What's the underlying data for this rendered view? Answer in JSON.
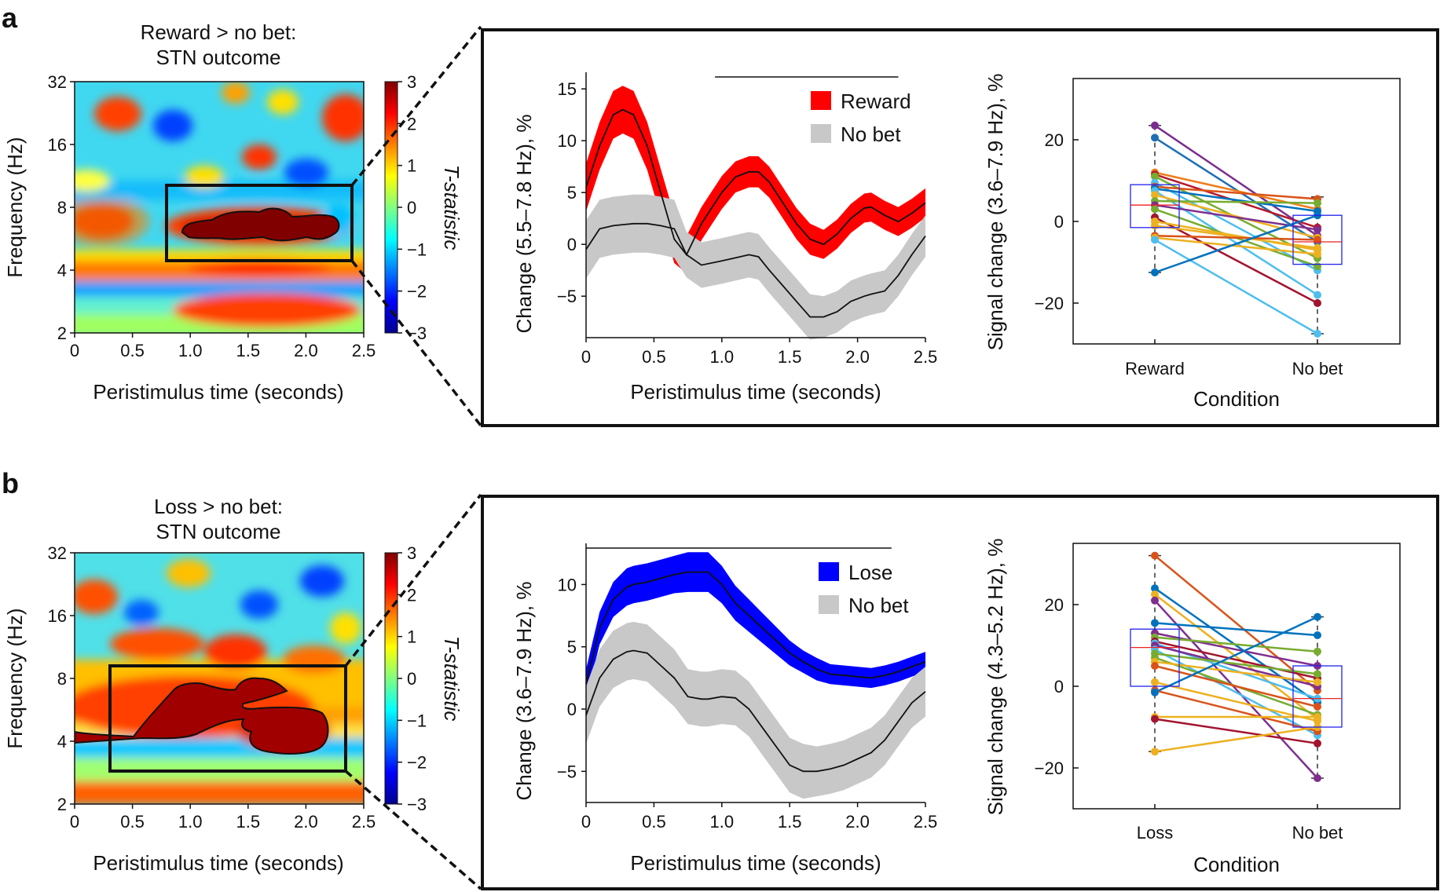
{
  "panels": [
    {
      "letter": "a",
      "heatmap": {
        "title_line1": "Reward > no bet:",
        "title_line2": "STN outcome",
        "ylabel": "Frequency (Hz)",
        "xlabel": "Peristimulus time (seconds)",
        "yticks": [
          "32",
          "16",
          "8",
          "4",
          "2"
        ],
        "xticks": [
          "0",
          "0.5",
          "1.0",
          "1.5",
          "2.0",
          "2.5"
        ],
        "colorbar_label": "T-statistic",
        "colorbar_ticks": [
          "3",
          "2",
          "1",
          "0",
          "−1",
          "−2",
          "−3"
        ],
        "roi_time": [
          0.8,
          2.4
        ],
        "roi_freq_hz": [
          4.6,
          10.7
        ]
      },
      "timecourse": {
        "ylabel": "Change (5.5–7.8 Hz), %",
        "xlabel": "Peristimulus time (seconds)",
        "xticks": [
          "0",
          "0.5",
          "1.0",
          "1.5",
          "2.0",
          "2.5"
        ],
        "yticks": [
          "15",
          "10",
          "5",
          "0",
          "−5"
        ],
        "legend": [
          "Reward",
          "No bet"
        ]
      },
      "paired": {
        "ylabel": "Signal change (3.6–7.9 Hz), %",
        "xlabel": "Condition",
        "categories": [
          "Reward",
          "No bet"
        ],
        "yticks": [
          "20",
          "0",
          "−20"
        ]
      }
    },
    {
      "letter": "b",
      "heatmap": {
        "title_line1": "Loss > no bet:",
        "title_line2": "STN outcome",
        "ylabel": "Frequency (Hz)",
        "xlabel": "Peristimulus time (seconds)",
        "yticks": [
          "32",
          "16",
          "8",
          "4",
          "2"
        ],
        "xticks": [
          "0",
          "0.5",
          "1.0",
          "1.5",
          "2.0",
          "2.5"
        ],
        "colorbar_label": "T-statistic",
        "colorbar_ticks": [
          "3",
          "2",
          "1",
          "0",
          "−1",
          "−2",
          "−3"
        ],
        "roi_time": [
          0.3,
          2.35
        ],
        "roi_freq_hz": [
          2.9,
          9.6
        ]
      },
      "timecourse": {
        "ylabel": "Change (3.6–7.9 Hz), %",
        "xlabel": "Peristimulus time (seconds)",
        "xticks": [
          "0",
          "0.5",
          "1.0",
          "1.5",
          "2.0",
          "2.5"
        ],
        "yticks": [
          "10",
          "5",
          "0",
          "−5"
        ],
        "legend": [
          "Lose",
          "No bet"
        ]
      },
      "paired": {
        "ylabel": "Signal change (4.3–5.2 Hz), %",
        "xlabel": "Condition",
        "categories": [
          "Loss",
          "No bet"
        ],
        "yticks": [
          "20",
          "0",
          "−20"
        ]
      }
    }
  ],
  "chart_data": [
    {
      "type": "heatmap",
      "title": "Reward > no bet: STN outcome",
      "xlabel": "Peristimulus time (seconds)",
      "ylabel": "Frequency (Hz)",
      "xlim": [
        0,
        2.5
      ],
      "ylim_hz": [
        2,
        32
      ],
      "clim": [
        -3,
        3
      ],
      "colorbar_label": "T-statistic",
      "significant_cluster": "≈1.0–2.3 s, ≈5.5–7.8 Hz"
    },
    {
      "type": "line",
      "ylabel": "Change (5.5–7.8 Hz), %",
      "xlabel": "Peristimulus time (seconds)",
      "xlim": [
        0,
        2.5
      ],
      "ylim": [
        -9,
        16
      ],
      "significance_bar": [
        0.95,
        2.3
      ],
      "x": [
        0,
        0.1,
        0.2,
        0.27,
        0.35,
        0.45,
        0.55,
        0.65,
        0.74,
        0.85,
        1.0,
        1.1,
        1.2,
        1.27,
        1.35,
        1.45,
        1.55,
        1.65,
        1.75,
        1.85,
        1.95,
        2.05,
        2.1,
        2.2,
        2.3,
        2.4,
        2.5
      ],
      "series": [
        {
          "name": "Reward",
          "color": "#ff0000",
          "values": [
            5.5,
            9.5,
            12.5,
            13,
            12.5,
            9.5,
            5,
            0.5,
            -1,
            2,
            5,
            6.5,
            7,
            7,
            6,
            4,
            2,
            0.5,
            0,
            1,
            2.5,
            3.5,
            3.6,
            2.8,
            2.2,
            3,
            4
          ],
          "sem": [
            2.3,
            2.3,
            2.3,
            2.3,
            2.3,
            2.3,
            2.3,
            2.3,
            1.8,
            1.6,
            1.6,
            1.5,
            1.5,
            1.5,
            1.5,
            1.5,
            1.5,
            1.5,
            1.4,
            1.4,
            1.4,
            1.4,
            1.4,
            1.4,
            1.4,
            1.4,
            1.4
          ]
        },
        {
          "name": "No bet",
          "color": "#c8c8c8",
          "values": [
            -0.5,
            1.5,
            1.8,
            1.9,
            2,
            2,
            1.8,
            1.5,
            -1,
            -2,
            -1.6,
            -1.3,
            -1,
            -1.2,
            -2.5,
            -4,
            -5.5,
            -7,
            -7,
            -6.5,
            -5.5,
            -5,
            -4.8,
            -4.5,
            -3,
            -1,
            0.8
          ],
          "sem": [
            2.8,
            2.8,
            2.8,
            2.8,
            2.8,
            2.8,
            2.8,
            2.8,
            2.2,
            2.2,
            2.2,
            2.2,
            2.2,
            2.2,
            2.2,
            2.2,
            2.2,
            2.2,
            2.0,
            2.0,
            2.0,
            2.0,
            2.0,
            2.0,
            2.0,
            2.0,
            2.0
          ]
        }
      ]
    },
    {
      "type": "scatter",
      "ylabel": "Signal change (3.6–7.9 Hz), %",
      "xlabel": "Condition",
      "categories": [
        "Reward",
        "No bet"
      ],
      "ylim": [
        -30,
        35
      ],
      "box": [
        {
          "q1": -1.5,
          "median": 4,
          "q3": 9,
          "whisker_low": -12.5,
          "whisker_high": 23.5
        },
        {
          "q1": -10.5,
          "median": -5,
          "q3": 1.5,
          "whisker_low": -27.5,
          "whisker_high": 6
        }
      ],
      "pairs": [
        {
          "a": 23.5,
          "b": -3.5,
          "color": "#7b2d8e"
        },
        {
          "a": 20.5,
          "b": -5,
          "color": "#1f6fb4"
        },
        {
          "a": 12,
          "b": 3,
          "color": "#ef7d1a"
        },
        {
          "a": 11.5,
          "b": -1.5,
          "color": "#b5192b"
        },
        {
          "a": 11,
          "b": -9,
          "color": "#77ac30"
        },
        {
          "a": 9.5,
          "b": -12,
          "color": "#4dbeee"
        },
        {
          "a": 8.5,
          "b": 5.5,
          "color": "#d95319"
        },
        {
          "a": 8,
          "b": 2.5,
          "color": "#0072bd"
        },
        {
          "a": 7.5,
          "b": -18,
          "color": "#4dbeee"
        },
        {
          "a": 6.5,
          "b": -4,
          "color": "#edb120"
        },
        {
          "a": 5,
          "b": 4.5,
          "color": "#77ac30"
        },
        {
          "a": 4,
          "b": -2,
          "color": "#7e2f8e"
        },
        {
          "a": 3,
          "b": -11,
          "color": "#77ac30"
        },
        {
          "a": 1,
          "b": -20,
          "color": "#a2142f"
        },
        {
          "a": 0,
          "b": -7,
          "color": "#edb120"
        },
        {
          "a": -1,
          "b": -6.5,
          "color": "#edb120"
        },
        {
          "a": -3.5,
          "b": -4.5,
          "color": "#d95319"
        },
        {
          "a": -4,
          "b": -8,
          "color": "#edb120"
        },
        {
          "a": -4.5,
          "b": -27.5,
          "color": "#4dbeee"
        },
        {
          "a": -12.5,
          "b": 1.5,
          "color": "#0072bd"
        }
      ]
    },
    {
      "type": "heatmap",
      "title": "Loss > no bet: STN outcome",
      "xlabel": "Peristimulus time (seconds)",
      "ylabel": "Frequency (Hz)",
      "xlim": [
        0,
        2.5
      ],
      "ylim_hz": [
        2,
        32
      ],
      "clim": [
        -3,
        3
      ],
      "colorbar_label": "T-statistic",
      "significant_cluster": "≈0–2.2 s, ≈3.6–7.9 Hz"
    },
    {
      "type": "line",
      "ylabel": "Change (3.6–7.9 Hz), %",
      "xlabel": "Peristimulus time (seconds)",
      "xlim": [
        0,
        2.5
      ],
      "ylim": [
        -7.5,
        12.8
      ],
      "significance_bar": [
        0,
        2.25
      ],
      "x": [
        0,
        0.1,
        0.2,
        0.3,
        0.35,
        0.45,
        0.55,
        0.65,
        0.75,
        0.85,
        0.9,
        1.0,
        1.1,
        1.2,
        1.3,
        1.4,
        1.5,
        1.6,
        1.7,
        1.8,
        1.9,
        2.0,
        2.1,
        2.2,
        2.3,
        2.4,
        2.5
      ],
      "series": [
        {
          "name": "Lose",
          "color": "#0000ff",
          "values": [
            2,
            6.5,
            8.8,
            9.8,
            10,
            10.2,
            10.5,
            10.8,
            11,
            11,
            11,
            10,
            8.5,
            7.5,
            6.5,
            5.5,
            4.5,
            3.8,
            3.2,
            2.8,
            2.7,
            2.6,
            2.5,
            2.7,
            3,
            3.4,
            3.8
          ],
          "sem": [
            1.2,
            1.3,
            1.4,
            1.5,
            1.5,
            1.5,
            1.5,
            1.5,
            1.6,
            1.6,
            1.6,
            1.5,
            1.4,
            1.3,
            1.2,
            1.1,
            1.0,
            0.9,
            0.9,
            0.8,
            0.8,
            0.8,
            0.8,
            0.8,
            0.8,
            0.8,
            0.8
          ]
        },
        {
          "name": "No bet",
          "color": "#c8c8c8",
          "values": [
            -0.5,
            2.5,
            4,
            4.6,
            4.7,
            4.5,
            3.5,
            2.5,
            1,
            0.8,
            0.8,
            1,
            0.9,
            0,
            -1.5,
            -3,
            -4.5,
            -5,
            -5,
            -4.8,
            -4.5,
            -4,
            -3.5,
            -2.5,
            -1,
            0.5,
            1.4
          ],
          "sem": [
            2.3,
            2.3,
            2.3,
            2.3,
            2.3,
            2.3,
            2.3,
            2.3,
            2.2,
            2.2,
            2.2,
            2.2,
            2.2,
            2.2,
            2.2,
            2.2,
            2.2,
            2.2,
            2.0,
            2.0,
            2.0,
            2.0,
            2.0,
            2.0,
            2.0,
            2.0,
            2.0
          ]
        }
      ]
    },
    {
      "type": "scatter",
      "ylabel": "Signal change (4.3–5.2 Hz), %",
      "xlabel": "Condition",
      "categories": [
        "Loss",
        "No bet"
      ],
      "ylim": [
        -30,
        35
      ],
      "box": [
        {
          "q1": 0,
          "median": 9.5,
          "q3": 14,
          "whisker_low": -16,
          "whisker_high": 32
        },
        {
          "q1": -10,
          "median": -3,
          "q3": 5,
          "whisker_low": -22.5,
          "whisker_high": 17
        }
      ],
      "pairs": [
        {
          "a": 32,
          "b": -1,
          "color": "#d95319"
        },
        {
          "a": 24,
          "b": -4,
          "color": "#0072bd"
        },
        {
          "a": 22.5,
          "b": -8,
          "color": "#edb120"
        },
        {
          "a": 21,
          "b": -22.5,
          "color": "#7e2f8e"
        },
        {
          "a": 15.5,
          "b": 12.5,
          "color": "#0072bd"
        },
        {
          "a": 13,
          "b": 5,
          "color": "#7e2f8e"
        },
        {
          "a": 12,
          "b": 8.5,
          "color": "#77ac30"
        },
        {
          "a": 11,
          "b": 2,
          "color": "#a2142f"
        },
        {
          "a": 10.5,
          "b": -3,
          "color": "#4dbeee"
        },
        {
          "a": 10,
          "b": 0,
          "color": "#7e2f8e"
        },
        {
          "a": 9,
          "b": -12,
          "color": "#4dbeee"
        },
        {
          "a": 8,
          "b": 3,
          "color": "#77ac30"
        },
        {
          "a": 7,
          "b": -7,
          "color": "#77ac30"
        },
        {
          "a": 6,
          "b": 1,
          "color": "#edb120"
        },
        {
          "a": 5,
          "b": -5,
          "color": "#d95319"
        },
        {
          "a": 1,
          "b": -8.5,
          "color": "#edb120"
        },
        {
          "a": -1,
          "b": -11,
          "color": "#d95319"
        },
        {
          "a": -1.5,
          "b": 17,
          "color": "#0072bd"
        },
        {
          "a": -7.5,
          "b": -7.5,
          "color": "#edb120"
        },
        {
          "a": -8,
          "b": -14,
          "color": "#a2142f"
        },
        {
          "a": -16,
          "b": -10,
          "color": "#edb120"
        }
      ]
    }
  ]
}
